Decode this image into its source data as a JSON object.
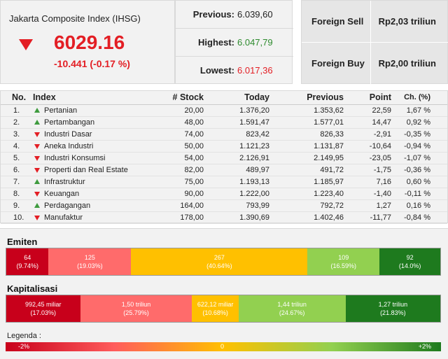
{
  "index": {
    "title": "Jakarta Composite Index (IHSG)",
    "value": "6029.16",
    "change": "-10.441 (-0.17 %)"
  },
  "stats": [
    {
      "label": "Previous:",
      "value": "6.039,60",
      "color": "#222222"
    },
    {
      "label": "Highest:",
      "value": "6.047,79",
      "color": "#2e8b2e"
    },
    {
      "label": "Lowest:",
      "value": "6.017,36",
      "color": "#e31e24"
    }
  ],
  "foreign": [
    {
      "label": "Foreign Sell",
      "value": "Rp2,03 triliun"
    },
    {
      "label": "Foreign Buy",
      "value": "Rp2,00 triliun"
    }
  ],
  "table": {
    "headers": {
      "no": "No.",
      "index": "Index",
      "stock": "# Stock",
      "today": "Today",
      "previous": "Previous",
      "point": "Point",
      "change": "Ch. (%)"
    },
    "rows": [
      {
        "no": "1.",
        "dir": "up",
        "name": "Pertanian",
        "stock": "20,00",
        "today": "1.376,20",
        "prev": "1.353,62",
        "point": "22,59",
        "ch": "1,67 %"
      },
      {
        "no": "2.",
        "dir": "up",
        "name": "Pertambangan",
        "stock": "48,00",
        "today": "1.591,47",
        "prev": "1.577,01",
        "point": "14,47",
        "ch": "0,92 %"
      },
      {
        "no": "3.",
        "dir": "down",
        "name": "Industri Dasar",
        "stock": "74,00",
        "today": "823,42",
        "prev": "826,33",
        "point": "-2,91",
        "ch": "-0,35 %"
      },
      {
        "no": "4.",
        "dir": "down",
        "name": "Aneka Industri",
        "stock": "50,00",
        "today": "1.121,23",
        "prev": "1.131,87",
        "point": "-10,64",
        "ch": "-0,94 %"
      },
      {
        "no": "5.",
        "dir": "down",
        "name": "Industri Konsumsi",
        "stock": "54,00",
        "today": "2.126,91",
        "prev": "2.149,95",
        "point": "-23,05",
        "ch": "-1,07 %"
      },
      {
        "no": "6.",
        "dir": "down",
        "name": "Properti dan Real Estate",
        "stock": "82,00",
        "today": "489,97",
        "prev": "491,72",
        "point": "-1,75",
        "ch": "-0,36 %"
      },
      {
        "no": "7.",
        "dir": "up",
        "name": "Infrastruktur",
        "stock": "75,00",
        "today": "1.193,13",
        "prev": "1.185,97",
        "point": "7,16",
        "ch": "0,60 %"
      },
      {
        "no": "8.",
        "dir": "down",
        "name": "Keuangan",
        "stock": "90,00",
        "today": "1.222,00",
        "prev": "1.223,40",
        "point": "-1,40",
        "ch": "-0,11 %"
      },
      {
        "no": "9.",
        "dir": "up",
        "name": "Perdagangan",
        "stock": "164,00",
        "today": "793,99",
        "prev": "792,72",
        "point": "1,27",
        "ch": "0,16 %"
      },
      {
        "no": "10.",
        "dir": "down",
        "name": "Manufaktur",
        "stock": "178,00",
        "today": "1.390,69",
        "prev": "1.402,46",
        "point": "-11,77",
        "ch": "-0,84 %"
      }
    ]
  },
  "emiten": {
    "title": "Emiten",
    "segments": [
      {
        "value": "64",
        "pct": "(9.74%)",
        "share": 9.74,
        "color": "#c8001b"
      },
      {
        "value": "125",
        "pct": "(19.03%)",
        "share": 19.03,
        "color": "#ff6b6b"
      },
      {
        "value": "267",
        "pct": "(40.64%)",
        "share": 40.64,
        "color": "#ffc000"
      },
      {
        "value": "109",
        "pct": "(16.59%)",
        "share": 16.59,
        "color": "#92d050"
      },
      {
        "value": "92",
        "pct": "(14.0%)",
        "share": 14.0,
        "color": "#1e7a1e"
      }
    ]
  },
  "kapitalisasi": {
    "title": "Kapitalisasi",
    "segments": [
      {
        "value": "992,45 miliar",
        "pct": "(17.03%)",
        "share": 17.03,
        "color": "#c8001b"
      },
      {
        "value": "1,50 triliun",
        "pct": "(25.79%)",
        "share": 25.79,
        "color": "#ff6b6b"
      },
      {
        "value": "622,12 miliar",
        "pct": "(10.68%)",
        "share": 10.68,
        "color": "#ffc000"
      },
      {
        "value": "1,44 triliun",
        "pct": "(24.67%)",
        "share": 24.67,
        "color": "#92d050"
      },
      {
        "value": "1,27 triliun",
        "pct": "(21.83%)",
        "share": 21.83,
        "color": "#1e7a1e"
      }
    ]
  },
  "legend": {
    "title": "Legenda :",
    "min": "-2%",
    "mid": "0",
    "max": "+2%"
  }
}
